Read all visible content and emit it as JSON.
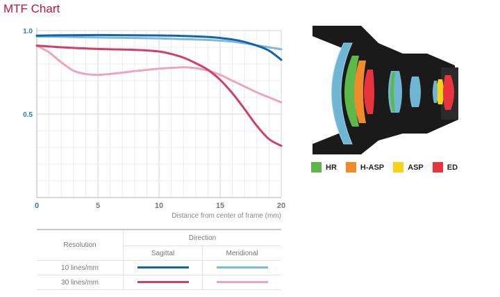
{
  "page_title": "MTF Chart",
  "chart_data": {
    "type": "line",
    "xlabel": "Distance from center of frame (mm)",
    "ylabel": "",
    "xlim": [
      0,
      20
    ],
    "ylim": [
      0,
      1.0
    ],
    "x_ticks": [
      "0",
      "5",
      "10",
      "15",
      "20"
    ],
    "y_ticks": [
      "1.0",
      "0.5"
    ],
    "grid": true,
    "series": [
      {
        "name": "10 lines/mm Sagittal",
        "color": "#0f64b0",
        "x": [
          0,
          2,
          4,
          6,
          8,
          10,
          12,
          14,
          15,
          16,
          17,
          18,
          19,
          20
        ],
        "y": [
          0.97,
          0.972,
          0.973,
          0.973,
          0.972,
          0.971,
          0.968,
          0.962,
          0.956,
          0.947,
          0.932,
          0.91,
          0.88,
          0.825
        ]
      },
      {
        "name": "10 lines/mm Meridional",
        "color": "#7fb8dc",
        "x": [
          0,
          2,
          4,
          6,
          8,
          10,
          12,
          14,
          15,
          16,
          17,
          18,
          19,
          20
        ],
        "y": [
          0.965,
          0.963,
          0.96,
          0.958,
          0.956,
          0.953,
          0.949,
          0.944,
          0.94,
          0.934,
          0.924,
          0.912,
          0.9,
          0.888
        ]
      },
      {
        "name": "30 lines/mm Sagittal",
        "color": "#d33d6a",
        "x": [
          0,
          2,
          4,
          6,
          8,
          10,
          11,
          12,
          13,
          14,
          15,
          16,
          17,
          18,
          19,
          20
        ],
        "y": [
          0.91,
          0.9,
          0.893,
          0.888,
          0.885,
          0.875,
          0.86,
          0.838,
          0.805,
          0.765,
          0.705,
          0.625,
          0.53,
          0.43,
          0.35,
          0.31
        ]
      },
      {
        "name": "30 lines/mm Meridional",
        "color": "#eba6bb",
        "x": [
          0,
          1,
          2,
          3,
          4,
          5,
          6,
          8,
          10,
          12,
          13,
          14,
          15,
          16,
          17,
          18,
          19,
          20
        ],
        "y": [
          0.91,
          0.87,
          0.81,
          0.76,
          0.74,
          0.735,
          0.74,
          0.757,
          0.772,
          0.78,
          0.775,
          0.76,
          0.735,
          0.7,
          0.665,
          0.63,
          0.6,
          0.57
        ]
      }
    ]
  },
  "table": {
    "resolution_header": "Resolution",
    "direction_header": "Direction",
    "sagittal_header": "Sagittal",
    "meridional_header": "Meridional",
    "rows": [
      {
        "label": "10 lines/mm",
        "sagittal_color": "#0f64b0",
        "meridional_color": "#7fb8dc"
      },
      {
        "label": "30 lines/mm",
        "sagittal_color": "#d33d6a",
        "meridional_color": "#eba6bb"
      }
    ]
  },
  "lens_legend": [
    {
      "label": "HR",
      "color": "#5cb848",
      "icon": "hr-swatch-icon"
    },
    {
      "label": "H-ASP",
      "color": "#f18a2a",
      "icon": "h-asp-swatch-icon"
    },
    {
      "label": "ASP",
      "color": "#f5d418",
      "icon": "asp-swatch-icon"
    },
    {
      "label": "ED",
      "color": "#e8343c",
      "icon": "ed-swatch-icon"
    }
  ]
}
